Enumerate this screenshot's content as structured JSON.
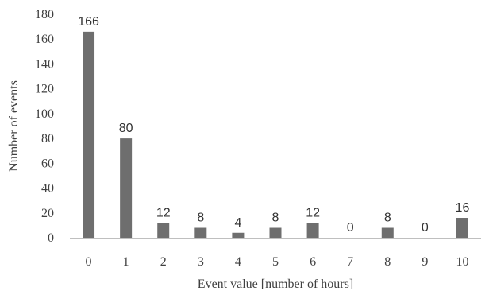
{
  "chart_data": {
    "type": "bar",
    "title": "",
    "xlabel": "Event value [number of hours]",
    "ylabel": "Number of events",
    "categories": [
      "0",
      "1",
      "2",
      "3",
      "4",
      "5",
      "6",
      "7",
      "8",
      "9",
      "10"
    ],
    "values": [
      166,
      80,
      12,
      8,
      4,
      8,
      12,
      0,
      8,
      0,
      16
    ],
    "data_labels": [
      "166",
      "80",
      "12",
      "8",
      "4",
      "8",
      "12",
      "0",
      "8",
      "0",
      "16"
    ],
    "yticks": [
      "0",
      "20",
      "40",
      "60",
      "80",
      "100",
      "120",
      "140",
      "160",
      "180"
    ],
    "ylim": [
      0,
      180
    ],
    "grid": false,
    "legend": "none",
    "bar_color": "#6e6e6e"
  }
}
